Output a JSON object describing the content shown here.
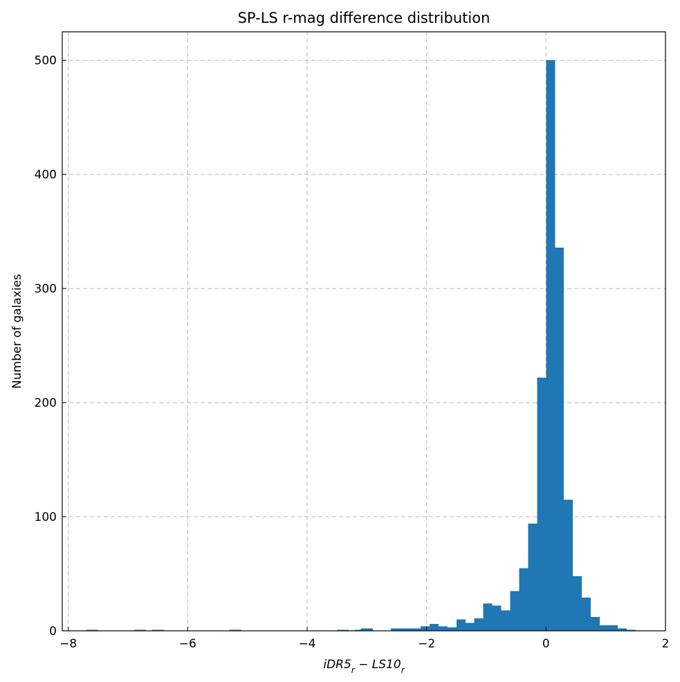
{
  "chart_data": {
    "type": "bar",
    "title": "SP-LS r-mag difference distribution",
    "xlabel": "iDR5_r − LS10_r",
    "ylabel": "Number of galaxies",
    "xlim": [
      -8.1,
      2.0
    ],
    "ylim": [
      0,
      525
    ],
    "xticks": [
      -8,
      -6,
      -4,
      -2,
      0,
      2
    ],
    "xtick_labels": [
      "−8",
      "−6",
      "−4",
      "−2",
      "0",
      "2"
    ],
    "yticks": [
      0,
      100,
      200,
      300,
      400,
      500
    ],
    "ytick_labels": [
      "0",
      "100",
      "200",
      "300",
      "400",
      "500"
    ],
    "grid": true,
    "bar_color": "#1f77b4",
    "bins": [
      {
        "x0": -7.7,
        "x1": -7.5,
        "count": 1
      },
      {
        "x0": -6.9,
        "x1": -6.7,
        "count": 1
      },
      {
        "x0": -6.6,
        "x1": -6.4,
        "count": 1
      },
      {
        "x0": -5.3,
        "x1": -5.1,
        "count": 1
      },
      {
        "x0": -3.5,
        "x1": -3.3,
        "count": 1
      },
      {
        "x0": -3.2,
        "x1": -3.1,
        "count": 1
      },
      {
        "x0": -3.1,
        "x1": -2.9,
        "count": 2
      },
      {
        "x0": -2.6,
        "x1": -2.1,
        "count": 2
      },
      {
        "x0": -2.1,
        "x1": -1.95,
        "count": 4
      },
      {
        "x0": -1.95,
        "x1": -1.8,
        "count": 6
      },
      {
        "x0": -1.8,
        "x1": -1.65,
        "count": 4
      },
      {
        "x0": -1.65,
        "x1": -1.5,
        "count": 3
      },
      {
        "x0": -1.5,
        "x1": -1.35,
        "count": 10
      },
      {
        "x0": -1.35,
        "x1": -1.2,
        "count": 7
      },
      {
        "x0": -1.2,
        "x1": -1.05,
        "count": 11
      },
      {
        "x0": -1.05,
        "x1": -0.9,
        "count": 24
      },
      {
        "x0": -0.9,
        "x1": -0.75,
        "count": 22
      },
      {
        "x0": -0.75,
        "x1": -0.6,
        "count": 18
      },
      {
        "x0": -0.6,
        "x1": -0.45,
        "count": 35
      },
      {
        "x0": -0.45,
        "x1": -0.3,
        "count": 55
      },
      {
        "x0": -0.3,
        "x1": -0.15,
        "count": 94
      },
      {
        "x0": -0.15,
        "x1": 0.0,
        "count": 222
      },
      {
        "x0": 0.0,
        "x1": 0.15,
        "count": 500
      },
      {
        "x0": 0.15,
        "x1": 0.3,
        "count": 336
      },
      {
        "x0": 0.3,
        "x1": 0.45,
        "count": 115
      },
      {
        "x0": 0.45,
        "x1": 0.6,
        "count": 48
      },
      {
        "x0": 0.6,
        "x1": 0.75,
        "count": 29
      },
      {
        "x0": 0.75,
        "x1": 0.9,
        "count": 12
      },
      {
        "x0": 0.9,
        "x1": 1.05,
        "count": 5
      },
      {
        "x0": 1.05,
        "x1": 1.2,
        "count": 5
      },
      {
        "x0": 1.2,
        "x1": 1.35,
        "count": 2
      },
      {
        "x0": 1.35,
        "x1": 1.5,
        "count": 1
      }
    ]
  }
}
